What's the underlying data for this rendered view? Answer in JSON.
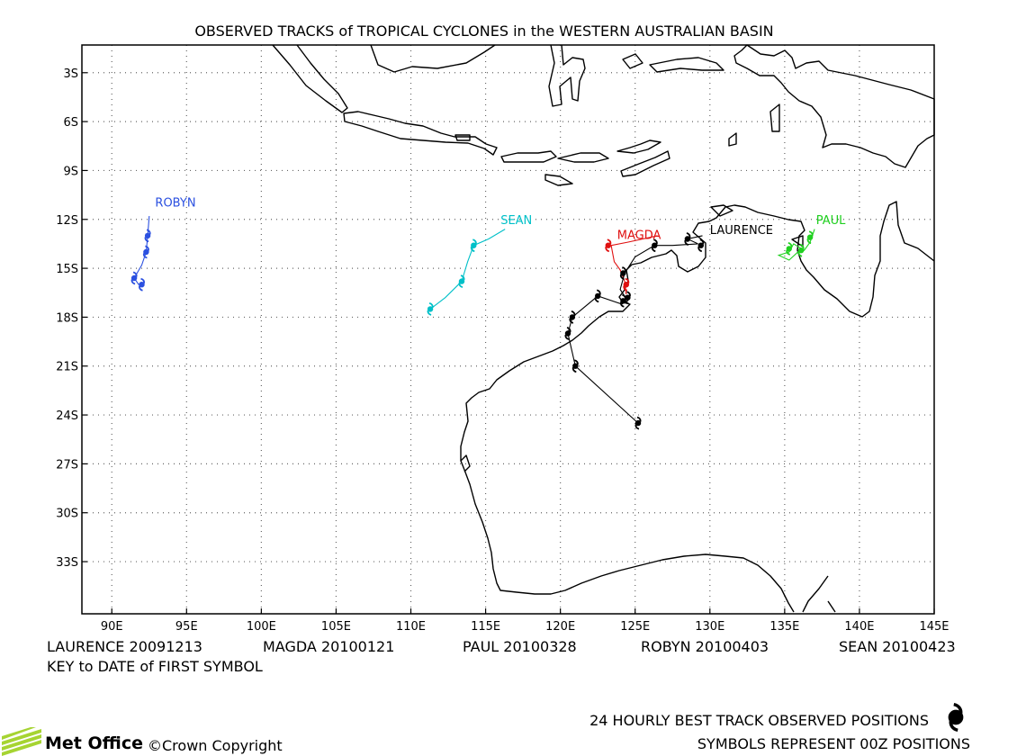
{
  "title": "OBSERVED TRACKS of TROPICAL CYCLONES in the WESTERN AUSTRALIAN BASIN",
  "lat_ticks": [
    "3S",
    "6S",
    "9S",
    "12S",
    "15S",
    "18S",
    "21S",
    "24S",
    "27S",
    "30S",
    "33S"
  ],
  "lon_ticks": [
    "90E",
    "95E",
    "100E",
    "105E",
    "110E",
    "115E",
    "120E",
    "125E",
    "130E",
    "135E",
    "140E",
    "145E"
  ],
  "storm_keys": [
    {
      "name": "LAURENCE",
      "date": "20091213"
    },
    {
      "name": "MAGDA",
      "date": "20100121"
    },
    {
      "name": "PAUL",
      "date": "20100328"
    },
    {
      "name": "ROBYN",
      "date": "20100403"
    },
    {
      "name": "SEAN",
      "date": "20100423"
    }
  ],
  "key_note": "KEY to DATE of FIRST SYMBOL",
  "legend_line1": "24 HOURLY BEST TRACK OBSERVED POSITIONS",
  "legend_line2": "SYMBOLS REPRESENT 00Z POSITIONS",
  "logo_text": "Met Office",
  "copyright": "©Crown Copyright",
  "tracks": [
    {
      "name": "ROBYN",
      "color": "#2b50e0",
      "label_at": [
        92.9,
        -11.2
      ],
      "points": [
        [
          92.5,
          -11.8
        ],
        [
          92.4,
          -13.0
        ],
        [
          92.3,
          -14.0
        ],
        [
          92.0,
          -14.8
        ],
        [
          91.5,
          -15.6
        ],
        [
          91.8,
          -16.0
        ],
        [
          92.1,
          -16.1
        ]
      ],
      "symbols": [
        [
          92.4,
          -13.0
        ],
        [
          92.3,
          -14.0
        ],
        [
          91.5,
          -15.6
        ],
        [
          92.0,
          -16.0
        ]
      ]
    },
    {
      "name": "SEAN",
      "color": "#00c0c8",
      "label_at": [
        116.0,
        -12.3
      ],
      "points": [
        [
          116.3,
          -12.6
        ],
        [
          115.2,
          -13.2
        ],
        [
          114.2,
          -13.6
        ],
        [
          113.8,
          -14.6
        ],
        [
          113.4,
          -15.8
        ],
        [
          112.3,
          -16.8
        ],
        [
          111.3,
          -17.5
        ]
      ],
      "symbols": [
        [
          114.2,
          -13.6
        ],
        [
          113.4,
          -15.8
        ],
        [
          111.3,
          -17.5
        ]
      ]
    },
    {
      "name": "MAGDA",
      "color": "#e01010",
      "label_at": [
        123.8,
        -13.2
      ],
      "points": [
        [
          126.5,
          -13.0
        ],
        [
          124.5,
          -13.4
        ],
        [
          123.4,
          -13.6
        ],
        [
          123.6,
          -14.6
        ],
        [
          124.0,
          -15.1
        ],
        [
          124.3,
          -15.8
        ],
        [
          124.4,
          -16.6
        ]
      ],
      "symbols": [
        [
          123.2,
          -13.6
        ],
        [
          124.4,
          -16.0
        ]
      ]
    },
    {
      "name": "LAURENCE",
      "color": "#000000",
      "label_at": [
        130.0,
        -12.9
      ],
      "points": [
        [
          129.5,
          -13.0
        ],
        [
          128.5,
          -13.2
        ],
        [
          129.2,
          -13.5
        ],
        [
          127.5,
          -13.6
        ],
        [
          126.3,
          -13.6
        ],
        [
          125.0,
          -14.3
        ],
        [
          124.3,
          -15.3
        ],
        [
          124.0,
          -16.3
        ],
        [
          124.5,
          -17.0
        ],
        [
          124.1,
          -17.2
        ],
        [
          122.5,
          -16.7
        ],
        [
          120.8,
          -18.0
        ],
        [
          120.5,
          -19.0
        ],
        [
          121.0,
          -21.0
        ],
        [
          125.2,
          -24.5
        ]
      ],
      "symbols": [
        [
          128.5,
          -13.2
        ],
        [
          129.4,
          -13.6
        ],
        [
          126.3,
          -13.6
        ],
        [
          124.2,
          -15.3
        ],
        [
          124.5,
          -16.8
        ],
        [
          124.2,
          -17.0
        ],
        [
          122.5,
          -16.7
        ],
        [
          120.8,
          -18.0
        ],
        [
          120.5,
          -19.0
        ],
        [
          121.0,
          -21.0
        ],
        [
          125.2,
          -24.5
        ]
      ]
    },
    {
      "name": "PAUL",
      "color": "#20d020",
      "label_at": [
        137.1,
        -12.3
      ],
      "points": [
        [
          137.0,
          -12.6
        ],
        [
          136.7,
          -13.4
        ],
        [
          136.3,
          -13.9
        ],
        [
          135.6,
          -13.5
        ],
        [
          135.3,
          -14.0
        ],
        [
          134.6,
          -14.2
        ],
        [
          135.3,
          -14.5
        ],
        [
          136.0,
          -13.9
        ]
      ],
      "symbols": [
        [
          136.7,
          -13.1
        ],
        [
          135.3,
          -13.8
        ],
        [
          136.1,
          -13.9
        ]
      ]
    }
  ]
}
